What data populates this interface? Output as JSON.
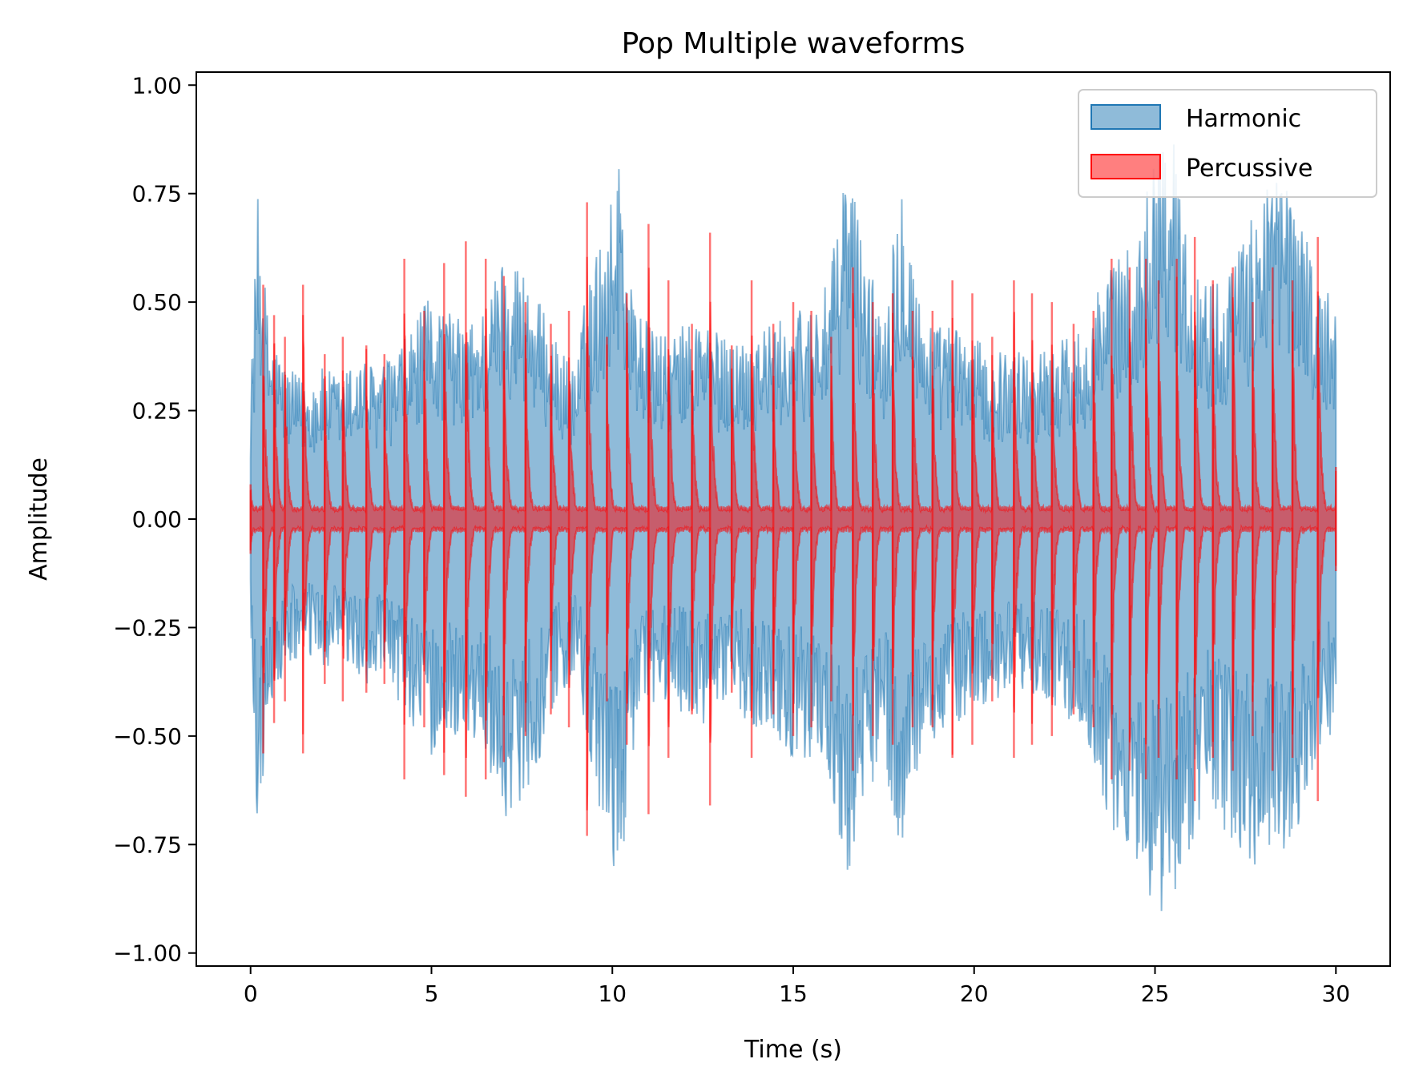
{
  "chart_data": {
    "type": "area",
    "title": "Pop Multiple waveforms",
    "xlabel": "Time (s)",
    "ylabel": "Amplitude",
    "xlim": [
      -1.5,
      31.5
    ],
    "ylim": [
      -1.03,
      1.03
    ],
    "xticks": [
      0,
      5,
      10,
      15,
      20,
      25,
      30
    ],
    "xtick_labels": [
      "0",
      "5",
      "10",
      "15",
      "20",
      "25",
      "30"
    ],
    "yticks": [
      1.0,
      0.75,
      0.5,
      0.25,
      0.0,
      -0.25,
      -0.5,
      -0.75,
      -1.0
    ],
    "ytick_labels": [
      "1.00",
      "0.75",
      "0.50",
      "0.25",
      "0.00",
      "−0.25",
      "−0.50",
      "−0.75",
      "−1.00"
    ],
    "grid": false,
    "legend_position": "top-right",
    "series": [
      {
        "name": "Harmonic",
        "color": "#1f77b4",
        "opacity": 0.5,
        "x": [
          0,
          0.2,
          0.5,
          1,
          1.5,
          2,
          2.5,
          3,
          3.5,
          4,
          4.5,
          5,
          5.5,
          6,
          6.5,
          7,
          7.5,
          8,
          8.5,
          9,
          9.3,
          9.5,
          10,
          10.2,
          10.5,
          11,
          11.5,
          12,
          12.5,
          13,
          13.5,
          14,
          14.5,
          15,
          15.5,
          16,
          16.5,
          17,
          17.5,
          18,
          18.5,
          19,
          19.5,
          20,
          20.5,
          21,
          21.5,
          22,
          22.5,
          23,
          23.5,
          24,
          24.5,
          25,
          25.5,
          26,
          26.5,
          27,
          27.5,
          28,
          28.5,
          29,
          29.5,
          30
        ],
        "upper": [
          0.3,
          0.74,
          0.45,
          0.35,
          0.32,
          0.35,
          0.33,
          0.38,
          0.35,
          0.38,
          0.45,
          0.52,
          0.48,
          0.45,
          0.5,
          0.62,
          0.6,
          0.5,
          0.4,
          0.35,
          0.55,
          0.6,
          0.75,
          0.88,
          0.55,
          0.45,
          0.42,
          0.45,
          0.48,
          0.42,
          0.42,
          0.45,
          0.45,
          0.48,
          0.5,
          0.55,
          0.86,
          0.6,
          0.5,
          0.82,
          0.5,
          0.45,
          0.45,
          0.42,
          0.38,
          0.4,
          0.38,
          0.4,
          0.42,
          0.45,
          0.55,
          0.62,
          0.62,
          0.9,
          0.88,
          0.6,
          0.55,
          0.58,
          0.65,
          0.8,
          0.8,
          0.75,
          0.55,
          0.5
        ],
        "lower": [
          -0.3,
          -0.74,
          -0.45,
          -0.35,
          -0.32,
          -0.35,
          -0.33,
          -0.38,
          -0.38,
          -0.42,
          -0.48,
          -0.55,
          -0.5,
          -0.5,
          -0.55,
          -0.69,
          -0.65,
          -0.55,
          -0.42,
          -0.35,
          -0.58,
          -0.65,
          -0.8,
          -0.88,
          -0.55,
          -0.45,
          -0.42,
          -0.45,
          -0.5,
          -0.42,
          -0.45,
          -0.48,
          -0.5,
          -0.55,
          -0.55,
          -0.6,
          -0.85,
          -0.65,
          -0.55,
          -0.8,
          -0.55,
          -0.5,
          -0.48,
          -0.45,
          -0.42,
          -0.42,
          -0.4,
          -0.42,
          -0.45,
          -0.5,
          -0.65,
          -0.75,
          -0.8,
          -0.93,
          -0.9,
          -0.75,
          -0.65,
          -0.75,
          -0.78,
          -0.82,
          -0.8,
          -0.72,
          -0.55,
          -0.5
        ]
      },
      {
        "name": "Percussive",
        "color": "#ff0000",
        "opacity": 0.5,
        "x": [
          0,
          0.35,
          0.65,
          0.95,
          1.45,
          2.05,
          2.55,
          3.2,
          3.7,
          4.25,
          4.8,
          5.35,
          5.95,
          6.5,
          7.0,
          7.6,
          8.3,
          8.8,
          9.3,
          9.85,
          10.4,
          11.0,
          11.55,
          12.2,
          12.7,
          13.3,
          13.85,
          14.45,
          15.0,
          15.5,
          16.05,
          16.65,
          17.2,
          17.75,
          18.3,
          18.85,
          19.4,
          19.95,
          20.5,
          21.1,
          21.6,
          22.15,
          22.75,
          23.3,
          23.8,
          24.3,
          24.75,
          25.1,
          25.6,
          26.1,
          26.6,
          27.15,
          27.7,
          28.25,
          28.8,
          29.5,
          30.0
        ],
        "peak": [
          0.08,
          0.54,
          0.47,
          0.42,
          0.54,
          0.38,
          0.42,
          0.4,
          0.38,
          0.6,
          0.48,
          0.59,
          0.64,
          0.6,
          0.56,
          0.5,
          0.45,
          0.48,
          0.73,
          0.42,
          0.52,
          0.68,
          0.55,
          0.45,
          0.66,
          0.4,
          0.55,
          0.45,
          0.5,
          0.48,
          0.42,
          0.58,
          0.5,
          0.52,
          0.48,
          0.48,
          0.55,
          0.52,
          0.42,
          0.55,
          0.52,
          0.5,
          0.45,
          0.48,
          0.6,
          0.58,
          0.6,
          0.55,
          0.6,
          0.65,
          0.55,
          0.58,
          0.5,
          0.58,
          0.55,
          0.65,
          0.12
        ]
      }
    ]
  }
}
